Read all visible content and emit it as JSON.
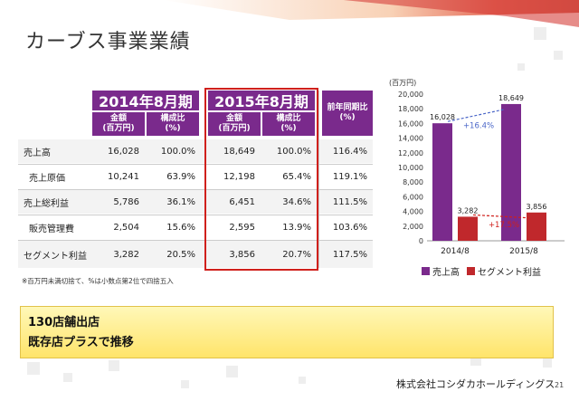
{
  "title": "カーブス事業業績",
  "table": {
    "header_2014": "2014年8月期",
    "header_2015": "2015年8月期",
    "header_yoy": "前年同期比",
    "header_yoy_unit": "(%)",
    "sub_amount": "金額",
    "sub_amount_unit": "(百万円)",
    "sub_ratio": "構成比",
    "sub_ratio_unit": "(%)",
    "rows": [
      {
        "label": "売上高",
        "a2014": "16,028",
        "r2014": "100.0%",
        "a2015": "18,649",
        "r2015": "100.0%",
        "yoy": "116.4%"
      },
      {
        "label": "売上原価",
        "a2014": "10,241",
        "r2014": "63.9%",
        "a2015": "12,198",
        "r2015": "65.4%",
        "yoy": "119.1%"
      },
      {
        "label": "売上総利益",
        "a2014": "5,786",
        "r2014": "36.1%",
        "a2015": "6,451",
        "r2015": "34.6%",
        "yoy": "111.5%"
      },
      {
        "label": "販売管理費",
        "a2014": "2,504",
        "r2014": "15.6%",
        "a2015": "2,595",
        "r2015": "13.9%",
        "yoy": "103.6%"
      },
      {
        "label": "セグメント利益",
        "a2014": "3,282",
        "r2014": "20.5%",
        "a2015": "3,856",
        "r2015": "20.7%",
        "yoy": "117.5%"
      }
    ]
  },
  "note": "※百万円未満切捨て、%は小数点第2位で四捨五入",
  "highlight": {
    "line1": "130店舗出店",
    "line2": "既存店プラスで推移"
  },
  "company": "株式会社コシダカホールディングス",
  "page_number": "21",
  "colors": {
    "purple": "#7a2a8c",
    "red": "#c0282c",
    "highlight_border": "#d0201c"
  },
  "chart_data": {
    "type": "bar",
    "ylabel": "(百万円)",
    "ylim": [
      0,
      20000
    ],
    "yticks": [
      "0",
      "2,000",
      "4,000",
      "6,000",
      "8,000",
      "10,000",
      "12,000",
      "14,000",
      "16,000",
      "18,000",
      "20,000"
    ],
    "categories": [
      "2014/8",
      "2015/8"
    ],
    "series": [
      {
        "name": "売上高",
        "values": [
          16028,
          18649
        ],
        "labels": [
          "16,028",
          "18,649"
        ],
        "color": "#7a2a8c"
      },
      {
        "name": "セグメント利益",
        "values": [
          3282,
          3856
        ],
        "labels": [
          "3,282",
          "3,856"
        ],
        "color": "#c0282c"
      }
    ],
    "annotations": [
      "+16.4%",
      "+17.5%"
    ]
  }
}
